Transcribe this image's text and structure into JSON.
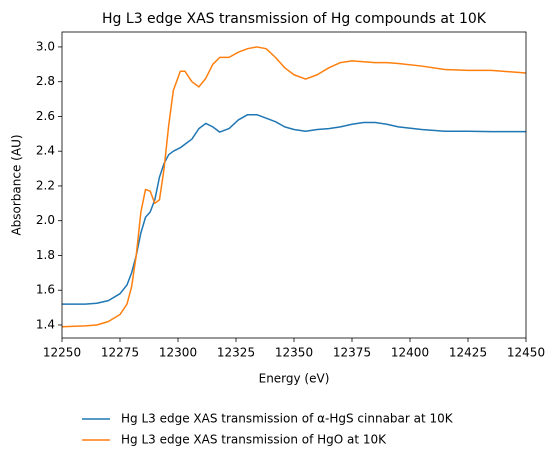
{
  "chart_data": {
    "type": "line",
    "title": "Hg L3 edge XAS transmission of Hg compounds at 10K",
    "xlabel": "Energy (eV)",
    "ylabel": "Absorbance (AU)",
    "x": [
      12250,
      12260,
      12265,
      12270,
      12275,
      12278,
      12280,
      12282,
      12284,
      12286,
      12288,
      12290,
      12292,
      12294,
      12296,
      12298,
      12301,
      12303,
      12306,
      12309,
      12312,
      12315,
      12318,
      12322,
      12326,
      12330,
      12334,
      12338,
      12342,
      12346,
      12350,
      12355,
      12360,
      12365,
      12370,
      12375,
      12380,
      12385,
      12390,
      12395,
      12405,
      12415,
      12425,
      12435,
      12450
    ],
    "series": [
      {
        "name": "Hg L3 edge XAS transmission of α-HgS cinnabar at 10K",
        "color": "#1f77b4",
        "values": [
          1.52,
          1.52,
          1.525,
          1.54,
          1.58,
          1.63,
          1.7,
          1.8,
          1.93,
          2.02,
          2.05,
          2.12,
          2.25,
          2.33,
          2.38,
          2.4,
          2.42,
          2.44,
          2.47,
          2.53,
          2.56,
          2.54,
          2.51,
          2.53,
          2.58,
          2.61,
          2.61,
          2.59,
          2.57,
          2.54,
          2.525,
          2.515,
          2.525,
          2.53,
          2.54,
          2.555,
          2.565,
          2.565,
          2.555,
          2.54,
          2.525,
          2.515,
          2.515,
          2.513,
          2.513
        ]
      },
      {
        "name": "Hg L3 edge XAS transmission of HgO at 10K",
        "color": "#ff7f0e",
        "values": [
          1.39,
          1.395,
          1.4,
          1.42,
          1.46,
          1.52,
          1.62,
          1.8,
          2.05,
          2.18,
          2.17,
          2.1,
          2.12,
          2.3,
          2.55,
          2.75,
          2.86,
          2.86,
          2.8,
          2.77,
          2.82,
          2.9,
          2.94,
          2.94,
          2.97,
          2.99,
          3.0,
          2.99,
          2.94,
          2.88,
          2.84,
          2.815,
          2.84,
          2.88,
          2.91,
          2.92,
          2.915,
          2.91,
          2.91,
          2.905,
          2.89,
          2.87,
          2.865,
          2.865,
          2.85
        ]
      }
    ],
    "xlim": [
      12250,
      12450
    ],
    "xticks": [
      12250,
      12275,
      12300,
      12325,
      12350,
      12375,
      12400,
      12425,
      12450
    ],
    "ylim": [
      1.325,
      3.086
    ],
    "yticks": [
      1.4,
      1.6,
      1.8,
      {
        "value": 2.0,
        "label": "2.0"
      },
      2.2,
      2.4,
      2.6,
      2.8,
      {
        "value": 3.0,
        "label": "3.0"
      }
    ],
    "legend": "below"
  }
}
